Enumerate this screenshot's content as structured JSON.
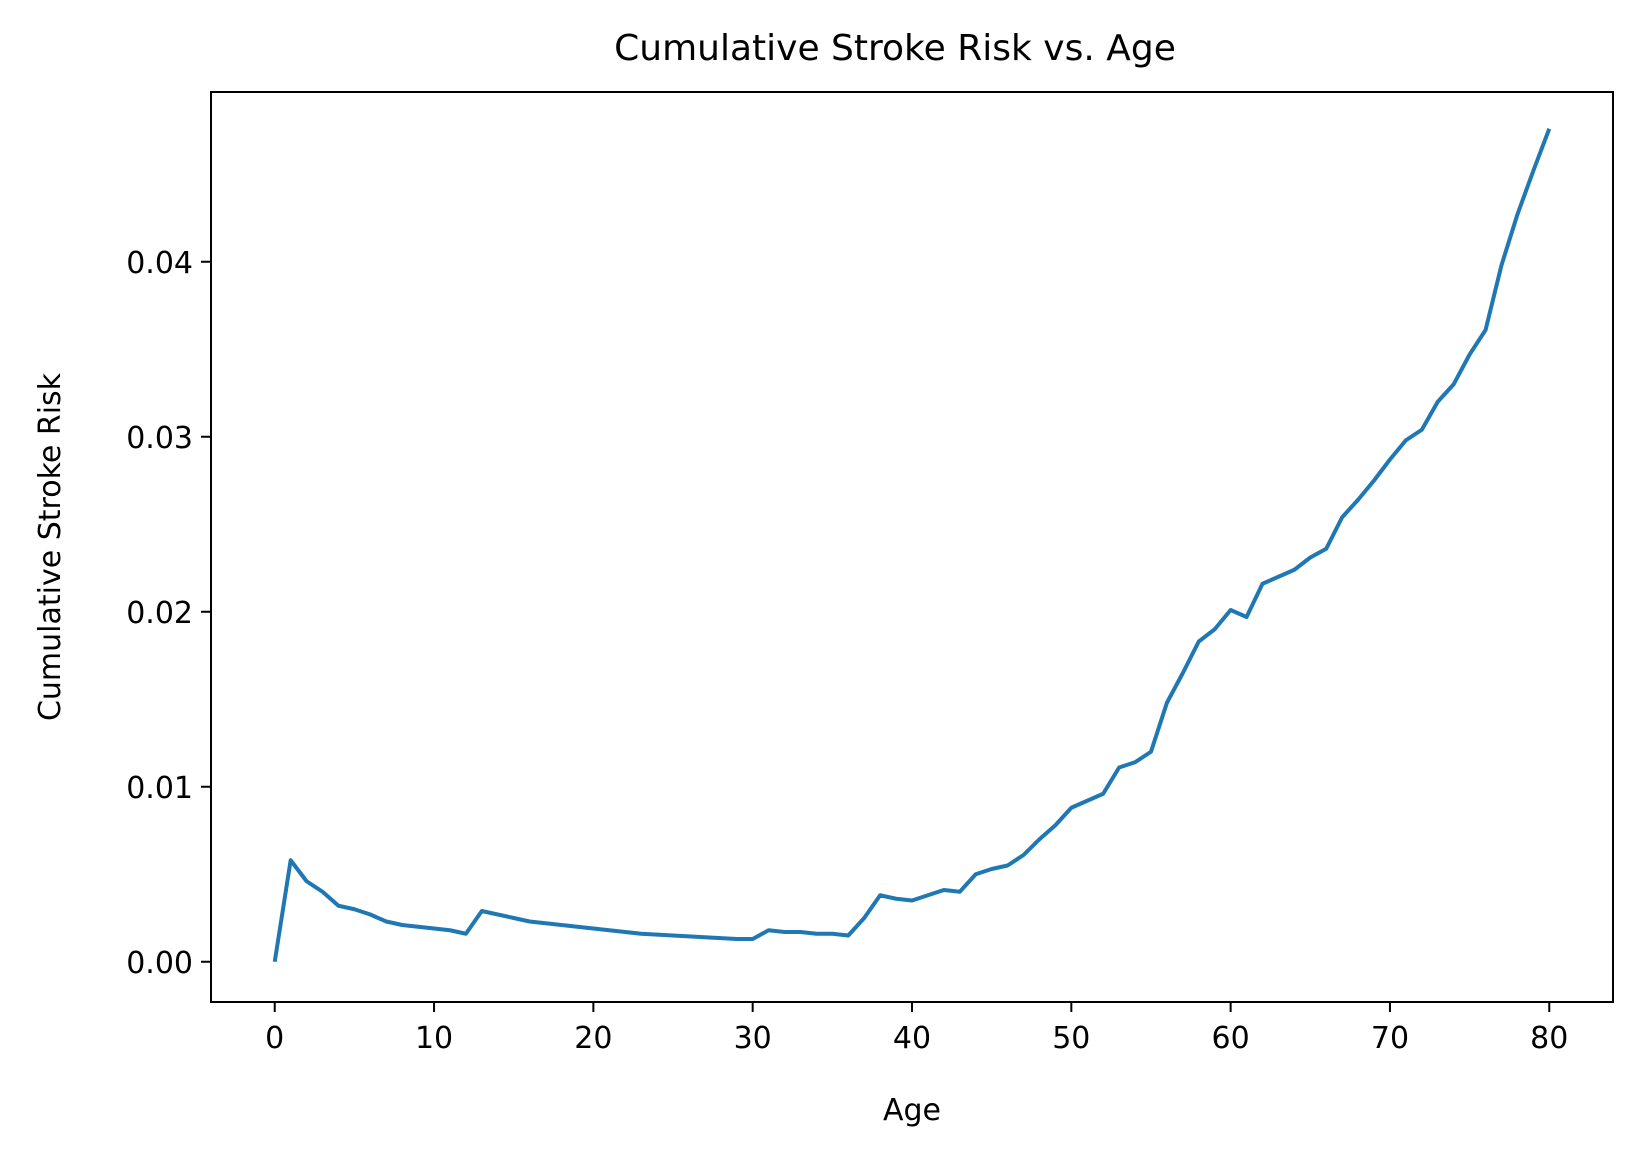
{
  "chart_data": {
    "type": "line",
    "title": "Cumulative Stroke Risk vs. Age",
    "xlabel": "Age",
    "ylabel": "Cumulative Stroke Risk",
    "xlim": [
      -4,
      84
    ],
    "ylim": [
      -0.0023,
      0.0497
    ],
    "xticks": [
      0,
      10,
      20,
      30,
      40,
      50,
      60,
      70,
      80
    ],
    "xtick_labels": [
      "0",
      "10",
      "20",
      "30",
      "40",
      "50",
      "60",
      "70",
      "80"
    ],
    "yticks": [
      0.0,
      0.01,
      0.02,
      0.03,
      0.04
    ],
    "ytick_labels": [
      "0.00",
      "0.01",
      "0.02",
      "0.03",
      "0.04"
    ],
    "grid": false,
    "legend": "none",
    "line_color": "#1f77b4",
    "series": [
      {
        "x": [
          0,
          1,
          2,
          3,
          4,
          5,
          6,
          7,
          8,
          9,
          10,
          11,
          12,
          13,
          14,
          15,
          16,
          17,
          18,
          19,
          20,
          21,
          22,
          23,
          24,
          25,
          26,
          27,
          28,
          29,
          30,
          31,
          32,
          33,
          34,
          35,
          36,
          37,
          38,
          39,
          40,
          41,
          42,
          43,
          44,
          45,
          46,
          47,
          48,
          49,
          50,
          51,
          52,
          53,
          54,
          55,
          56,
          57,
          58,
          59,
          60,
          61,
          62,
          63,
          64,
          65,
          66,
          67,
          68,
          69,
          70,
          71,
          72,
          73,
          74,
          75,
          76,
          77,
          78,
          79,
          80
        ],
        "values": [
          0.0,
          0.0058,
          0.0046,
          0.004,
          0.0032,
          0.003,
          0.0027,
          0.0023,
          0.0021,
          0.002,
          0.0019,
          0.0018,
          0.0016,
          0.0029,
          0.0027,
          0.0025,
          0.0023,
          0.0022,
          0.0021,
          0.002,
          0.0019,
          0.0018,
          0.0017,
          0.0016,
          0.00155,
          0.0015,
          0.00145,
          0.0014,
          0.00135,
          0.0013,
          0.0013,
          0.0018,
          0.0017,
          0.0017,
          0.0016,
          0.0016,
          0.0015,
          0.0025,
          0.0038,
          0.0036,
          0.0035,
          0.0038,
          0.0041,
          0.004,
          0.005,
          0.0053,
          0.0055,
          0.0061,
          0.007,
          0.0078,
          0.0088,
          0.0092,
          0.0096,
          0.0111,
          0.0114,
          0.012,
          0.0148,
          0.0165,
          0.0183,
          0.019,
          0.0201,
          0.0197,
          0.0216,
          0.022,
          0.0224,
          0.0231,
          0.0236,
          0.0254,
          0.0264,
          0.0275,
          0.0287,
          0.0298,
          0.0304,
          0.032,
          0.033,
          0.0347,
          0.0361,
          0.0398,
          0.0427,
          0.0452,
          0.0476
        ]
      }
    ]
  }
}
